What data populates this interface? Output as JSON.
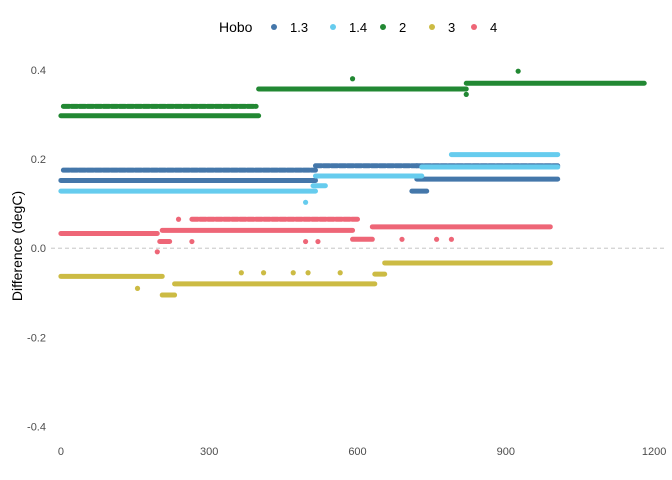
{
  "chart_data": {
    "type": "scatter",
    "title": "",
    "xlabel": "",
    "ylabel": "Difference (degC)",
    "xlim": [
      -20,
      1220
    ],
    "ylim": [
      -0.43,
      0.44
    ],
    "x_ticks": [
      0,
      300,
      600,
      900,
      1200
    ],
    "y_ticks": [
      -0.4,
      -0.2,
      0.0,
      0.2,
      0.4
    ],
    "y_tick_labels": [
      "-0.4",
      "-0.2",
      "0.0",
      "0.2",
      "0.4"
    ],
    "grid": false,
    "reference_line": {
      "y": 0,
      "style": "dashed",
      "color": "#bdbdbd"
    },
    "legend": {
      "title": "Hobo",
      "position": "top"
    },
    "series": [
      {
        "name": "1.3",
        "color": "#4477AA",
        "segments": [
          {
            "x_start": 0,
            "x_end": 515,
            "y": 0.152
          },
          {
            "x_start": 5,
            "x_end": 515,
            "y": 0.175,
            "sparse": true
          },
          {
            "x_start": 515,
            "x_end": 720,
            "y": 0.185,
            "sparse": true
          },
          {
            "x_start": 720,
            "x_end": 1005,
            "y": 0.155
          },
          {
            "x_start": 720,
            "x_end": 1005,
            "y": 0.185,
            "sparse": true
          },
          {
            "x_start": 710,
            "x_end": 740,
            "y": 0.128
          }
        ]
      },
      {
        "name": "1.4",
        "color": "#66CCEE",
        "segments": [
          {
            "x_start": 0,
            "x_end": 515,
            "y": 0.128
          },
          {
            "x_start": 515,
            "x_end": 730,
            "y": 0.162
          },
          {
            "x_start": 510,
            "x_end": 535,
            "y": 0.14
          },
          {
            "x_start": 730,
            "x_end": 1005,
            "y": 0.182
          },
          {
            "x_start": 790,
            "x_end": 1005,
            "y": 0.21
          }
        ],
        "points": [
          {
            "x": 495,
            "y": 0.103
          }
        ]
      },
      {
        "name": "2",
        "color": "#228833",
        "segments": [
          {
            "x_start": 0,
            "x_end": 400,
            "y": 0.297
          },
          {
            "x_start": 5,
            "x_end": 395,
            "y": 0.318,
            "sparse": true
          },
          {
            "x_start": 400,
            "x_end": 820,
            "y": 0.357
          },
          {
            "x_start": 820,
            "x_end": 1180,
            "y": 0.37
          }
        ],
        "points": [
          {
            "x": 590,
            "y": 0.38
          },
          {
            "x": 925,
            "y": 0.397
          },
          {
            "x": 820,
            "y": 0.345
          }
        ]
      },
      {
        "name": "3",
        "color": "#CCBB44",
        "segments": [
          {
            "x_start": 0,
            "x_end": 205,
            "y": -0.063
          },
          {
            "x_start": 205,
            "x_end": 230,
            "y": -0.105
          },
          {
            "x_start": 230,
            "x_end": 635,
            "y": -0.08
          },
          {
            "x_start": 635,
            "x_end": 655,
            "y": -0.058
          },
          {
            "x_start": 655,
            "x_end": 990,
            "y": -0.033
          }
        ],
        "points": [
          {
            "x": 155,
            "y": -0.09
          },
          {
            "x": 365,
            "y": -0.055
          },
          {
            "x": 410,
            "y": -0.055
          },
          {
            "x": 470,
            "y": -0.055
          },
          {
            "x": 500,
            "y": -0.055
          },
          {
            "x": 565,
            "y": -0.055
          }
        ]
      },
      {
        "name": "4",
        "color": "#EE6677",
        "segments": [
          {
            "x_start": 0,
            "x_end": 195,
            "y": 0.033
          },
          {
            "x_start": 200,
            "x_end": 220,
            "y": 0.015
          },
          {
            "x_start": 205,
            "x_end": 590,
            "y": 0.04
          },
          {
            "x_start": 265,
            "x_end": 600,
            "y": 0.065,
            "sparse": true
          },
          {
            "x_start": 590,
            "x_end": 630,
            "y": 0.02
          },
          {
            "x_start": 630,
            "x_end": 990,
            "y": 0.048
          }
        ],
        "points": [
          {
            "x": 195,
            "y": -0.008
          },
          {
            "x": 238,
            "y": 0.065
          },
          {
            "x": 265,
            "y": 0.015
          },
          {
            "x": 495,
            "y": 0.015
          },
          {
            "x": 520,
            "y": 0.015
          },
          {
            "x": 690,
            "y": 0.02
          },
          {
            "x": 760,
            "y": 0.02
          },
          {
            "x": 790,
            "y": 0.02
          }
        ]
      }
    ]
  }
}
